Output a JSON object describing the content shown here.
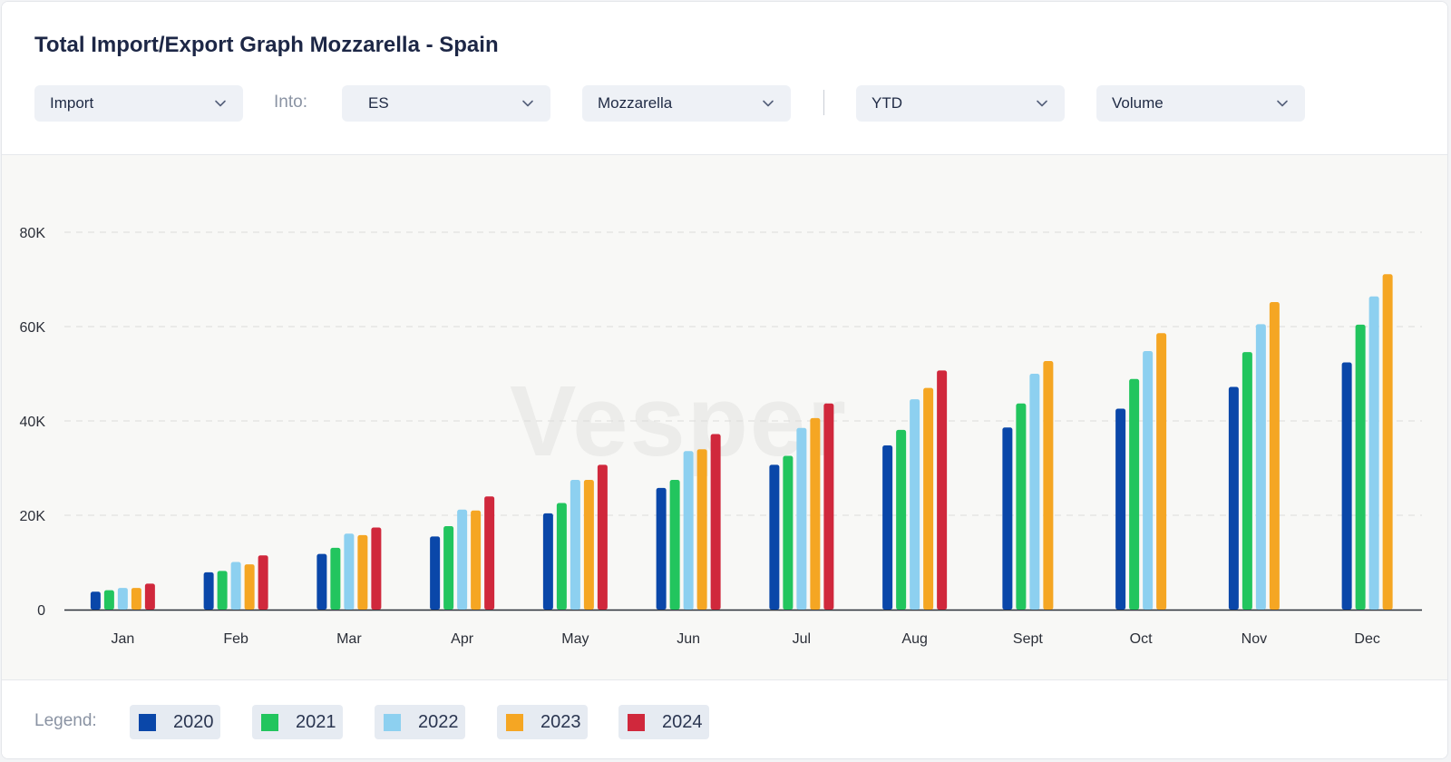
{
  "title": "Total Import/Export Graph Mozzarella - Spain",
  "filters": {
    "flow": "Import",
    "into_label": "Into:",
    "country": "ES",
    "product": "Mozzarella",
    "period": "YTD",
    "measure": "Volume"
  },
  "watermark": "Vesper",
  "legend_label": "Legend:",
  "colors": {
    "2020": "#0a47a9",
    "2021": "#22c55e",
    "2022": "#8dd0f0",
    "2023": "#f5a623",
    "2024": "#d0283c"
  },
  "chart_data": {
    "type": "bar",
    "title": "",
    "xlabel": "",
    "ylabel": "",
    "ylim": [
      0,
      80000
    ],
    "yticks": [
      0,
      20000,
      40000,
      60000,
      80000
    ],
    "ytick_labels": [
      "0",
      "20K",
      "40K",
      "60K",
      "80K"
    ],
    "grid": true,
    "legend_position": "bottom",
    "categories": [
      "Jan",
      "Feb",
      "Mar",
      "Apr",
      "May",
      "Jun",
      "Jul",
      "Aug",
      "Sept",
      "Oct",
      "Nov",
      "Dec"
    ],
    "series": [
      {
        "name": "2020",
        "values": [
          3800,
          7900,
          11800,
          15500,
          20400,
          25800,
          30700,
          34800,
          38600,
          42600,
          47200,
          52400
        ]
      },
      {
        "name": "2021",
        "values": [
          4100,
          8200,
          13100,
          17700,
          22600,
          27500,
          32600,
          38100,
          43700,
          48900,
          54600,
          60400
        ]
      },
      {
        "name": "2022",
        "values": [
          4600,
          10100,
          16100,
          21200,
          27500,
          33600,
          38500,
          44600,
          50000,
          54800,
          60500,
          66400
        ]
      },
      {
        "name": "2023",
        "values": [
          4600,
          9600,
          15800,
          21000,
          27500,
          34000,
          40600,
          47000,
          52700,
          58600,
          65200,
          71100
        ]
      },
      {
        "name": "2024",
        "values": [
          5500,
          11500,
          17400,
          24000,
          30700,
          37200,
          43700,
          50700,
          null,
          null,
          null,
          null
        ]
      }
    ]
  }
}
